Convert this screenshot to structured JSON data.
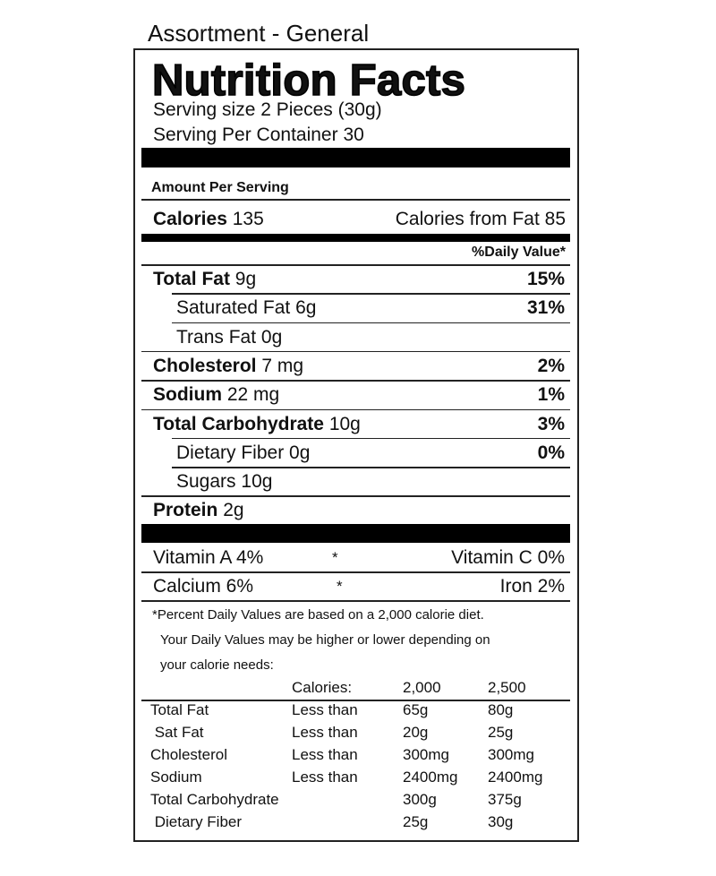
{
  "product_title": "Assortment - General",
  "header": {
    "title": "Nutrition Facts",
    "serving_size": "Serving size 2 Pieces (30g)",
    "servings_per_container": "Serving Per Container 30"
  },
  "amount_per_serving": "Amount Per Serving",
  "calories": {
    "label": "Calories",
    "value": "135",
    "from_fat": "Calories from Fat 85"
  },
  "daily_value_header": "%Daily Value*",
  "nutrients": [
    {
      "name": "Total Fat",
      "amount": "9g",
      "dv": "15%",
      "bold": true,
      "indent": false
    },
    {
      "name": "Saturated Fat",
      "amount": "6g",
      "dv": "31%",
      "bold": false,
      "indent": true
    },
    {
      "name": "Trans Fat",
      "amount": "0g",
      "dv": "",
      "bold": false,
      "indent": true
    },
    {
      "name": "Cholesterol",
      "amount": "7 mg",
      "dv": "2%",
      "bold": true,
      "indent": false
    },
    {
      "name": "Sodium",
      "amount": "22 mg",
      "dv": "1%",
      "bold": true,
      "indent": false
    },
    {
      "name": "Total Carbohydrate",
      "amount": "10g",
      "dv": "3%",
      "bold": true,
      "indent": false
    },
    {
      "name": "Dietary Fiber",
      "amount": "0g",
      "dv": "0%",
      "bold": false,
      "indent": true
    },
    {
      "name": "Sugars",
      "amount": "10g",
      "dv": "",
      "bold": false,
      "indent": true
    },
    {
      "name": "Protein",
      "amount": "2g",
      "dv": "",
      "bold": true,
      "indent": false
    }
  ],
  "vitamins": [
    {
      "left": "Vitamin A 4%",
      "sep": "*",
      "right": "Vitamin C 0%"
    },
    {
      "left": "Calcium 6%",
      "sep": "*",
      "right": "Iron 2%"
    }
  ],
  "footnote": [
    "*Percent Daily Values are based on a 2,000 calorie diet.",
    "Your Daily Values may be higher or lower depending on",
    "your calorie needs:"
  ],
  "dv_table": {
    "header": [
      "",
      "Calories:",
      "2,000",
      "2,500"
    ],
    "rows": [
      [
        "Total Fat",
        "Less than",
        "65g",
        "80g"
      ],
      [
        " Sat Fat",
        "Less than",
        "20g",
        "25g"
      ],
      [
        "Cholesterol",
        "Less than",
        "300mg",
        "300mg"
      ],
      [
        "Sodium",
        "Less than",
        "2400mg",
        "2400mg"
      ],
      [
        "Total Carbohydrate",
        "",
        "300g",
        "375g"
      ],
      [
        " Dietary Fiber",
        "",
        "25g",
        "30g"
      ]
    ]
  }
}
